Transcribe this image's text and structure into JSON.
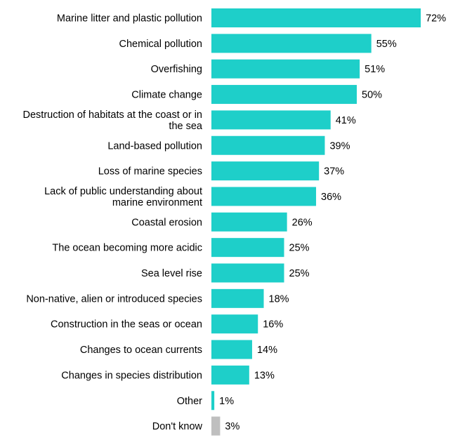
{
  "chart_data": {
    "type": "bar",
    "orientation": "horizontal",
    "title": "",
    "xlabel": "",
    "ylabel": "",
    "xlim": [
      0,
      72
    ],
    "grid": false,
    "legend": "none",
    "value_suffix": "%",
    "colors": {
      "main": "#1ECFC9",
      "dont_know": "#BFBFBF"
    },
    "categories": [
      "Marine litter and plastic pollution",
      "Chemical pollution",
      "Overfishing",
      "Climate change",
      "Destruction of habitats at the coast or in the sea",
      "Land-based pollution",
      "Loss of marine species",
      "Lack of public understanding about marine environment",
      "Coastal erosion",
      "The ocean becoming more acidic",
      "Sea level rise",
      "Non-native, alien or introduced species",
      "Construction in the seas or ocean",
      "Changes to ocean currents",
      "Changes in species distribution",
      "Other",
      "Don't know"
    ],
    "category_lines": [
      [
        "Marine litter and plastic pollution"
      ],
      [
        "Chemical pollution"
      ],
      [
        "Overfishing"
      ],
      [
        "Climate change"
      ],
      [
        "Destruction of habitats at the coast or in",
        "the sea"
      ],
      [
        "Land-based pollution"
      ],
      [
        "Loss of marine species"
      ],
      [
        "Lack of public understanding about",
        "marine environment"
      ],
      [
        "Coastal erosion"
      ],
      [
        "The ocean becoming more acidic"
      ],
      [
        "Sea level rise"
      ],
      [
        "Non-native, alien or introduced species"
      ],
      [
        "Construction in the seas or ocean"
      ],
      [
        "Changes to ocean currents"
      ],
      [
        "Changes in species distribution"
      ],
      [
        "Other"
      ],
      [
        "Don't know"
      ]
    ],
    "values": [
      72,
      55,
      51,
      50,
      41,
      39,
      37,
      36,
      26,
      25,
      25,
      18,
      16,
      14,
      13,
      1,
      3
    ],
    "value_labels": [
      "72%",
      "55%",
      "51%",
      "50%",
      "41%",
      "39%",
      "37%",
      "36%",
      "26%",
      "25%",
      "25%",
      "18%",
      "16%",
      "14%",
      "13%",
      "1%",
      "3%"
    ],
    "bar_colors": [
      "main",
      "main",
      "main",
      "main",
      "main",
      "main",
      "main",
      "main",
      "main",
      "main",
      "main",
      "main",
      "main",
      "main",
      "main",
      "main",
      "dont_know"
    ]
  }
}
